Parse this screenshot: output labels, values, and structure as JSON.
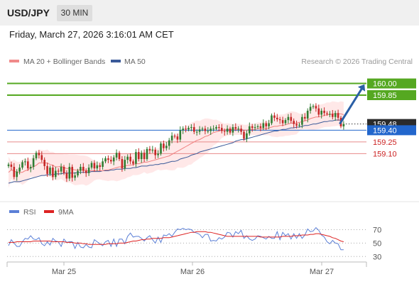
{
  "header": {
    "symbol": "USD/JPY",
    "timeframe": "30 MIN"
  },
  "timestamp": "Friday, March 27, 2026 3:16:01 AM CET",
  "watermark": "Research © 2026 Trading Central",
  "colors": {
    "resistance": "#55a821",
    "support_line": "#e88a8a",
    "support_label": "#cc2222",
    "current": "#2266cc",
    "arrow": "#2b5fa6",
    "band": "#ffd5d5",
    "ma20": "#f08080",
    "ma50": "#3a5a99",
    "rsi": "#5b7fd6",
    "rsi_ma": "#dd2222",
    "candle_up": "#2e7d32",
    "candle_down": "#c62828"
  },
  "chart_data": [
    {
      "type": "candlestick",
      "legend": [
        {
          "name": "MA 20 + Bollinger Bands",
          "color": "#f08a8a"
        },
        {
          "name": "MA 50",
          "color": "#3a5a99"
        }
      ],
      "legend_position": "top-left",
      "x_ticks": [
        "Mar 25",
        "Mar 26",
        "Mar 27"
      ],
      "ylim": [
        158.52,
        160.16
      ],
      "levels": {
        "resistance": [
          {
            "label": "160.00",
            "value": 160.0
          },
          {
            "label": "159.85",
            "value": 159.85
          }
        ],
        "support": [
          {
            "label": "159.25",
            "value": 159.25
          },
          {
            "label": "159.10",
            "value": 159.1
          }
        ],
        "pivot": {
          "label": "159.40",
          "value": 159.4
        },
        "last": {
          "label": "159.48",
          "value": 159.48
        }
      },
      "target": {
        "from": 159.49,
        "to": 160.0
      },
      "close": [
        158.96,
        158.93,
        158.8,
        158.87,
        158.92,
        158.99,
        159.0,
        158.91,
        158.93,
        159.04,
        159.11,
        159.08,
        159.02,
        158.94,
        158.84,
        158.92,
        158.8,
        158.88,
        158.87,
        158.93,
        158.85,
        158.78,
        158.93,
        158.79,
        158.82,
        158.88,
        158.93,
        158.88,
        158.85,
        158.92,
        158.98,
        158.91,
        158.95,
        158.93,
        159.0,
        159.04,
        159.02,
        159.0,
        159.05,
        159.11,
        159.03,
        158.91,
        159.02,
        159.06,
        159.0,
        158.97,
        159.12,
        159.03,
        159.11,
        159.03,
        159.16,
        159.14,
        159.15,
        159.08,
        159.1,
        159.23,
        159.17,
        159.2,
        159.27,
        159.33,
        159.32,
        159.28,
        159.4,
        159.42,
        159.41,
        159.43,
        159.44,
        159.38,
        159.38,
        159.41,
        159.42,
        159.39,
        159.39,
        159.42,
        159.42,
        159.44,
        159.43,
        159.39,
        159.38,
        159.42,
        159.37,
        159.44,
        159.42,
        159.42,
        159.38,
        159.29,
        159.36,
        159.45,
        159.43,
        159.44,
        159.45,
        159.43,
        159.49,
        159.45,
        159.49,
        159.59,
        159.56,
        159.54,
        159.53,
        159.49,
        159.53,
        159.57,
        159.52,
        159.48,
        159.46,
        159.47,
        159.57,
        159.55,
        159.65,
        159.7,
        159.71,
        159.68,
        159.6,
        159.65,
        159.62,
        159.61,
        159.61,
        159.57,
        159.62,
        159.56,
        159.45,
        159.48
      ],
      "ma20": [
        158.86,
        158.89,
        158.88,
        158.86,
        158.86,
        158.86,
        158.88,
        158.89,
        158.92,
        158.93,
        158.95,
        158.98,
        158.98,
        158.98,
        158.98,
        158.96,
        158.95,
        158.93,
        158.93,
        158.94,
        158.92,
        158.91,
        158.91,
        158.9,
        158.89,
        158.89,
        158.89,
        158.89,
        158.88,
        158.88,
        158.88,
        158.88,
        158.88,
        158.88,
        158.88,
        158.89,
        158.89,
        158.9,
        158.91,
        158.92,
        158.93,
        158.93,
        158.94,
        158.95,
        158.95,
        158.96,
        158.97,
        158.97,
        158.98,
        158.99,
        158.99,
        159.0,
        159.01,
        159.02,
        159.03,
        159.04,
        159.05,
        159.06,
        159.07,
        159.09,
        159.11,
        159.13,
        159.15,
        159.17,
        159.19,
        159.21,
        159.23,
        159.25,
        159.27,
        159.28,
        159.3,
        159.32,
        159.33,
        159.35,
        159.37,
        159.38,
        159.39,
        159.4,
        159.4,
        159.41,
        159.41,
        159.41,
        159.41,
        159.41,
        159.41,
        159.4,
        159.4,
        159.41,
        159.41,
        159.41,
        159.42,
        159.42,
        159.42,
        159.42,
        159.43,
        159.44,
        159.45,
        159.45,
        159.46,
        159.46,
        159.47,
        159.48,
        159.49,
        159.49,
        159.49,
        159.5,
        159.51,
        159.52,
        159.53,
        159.55,
        159.56,
        159.57,
        159.57,
        159.58,
        159.59,
        159.6,
        159.6,
        159.61,
        159.61,
        159.61,
        159.61,
        159.6
      ],
      "ma50": [
        158.72,
        158.73,
        158.74,
        158.74,
        158.74,
        158.75,
        158.76,
        158.77,
        158.78,
        158.79,
        158.8,
        158.81,
        158.82,
        158.82,
        158.83,
        158.83,
        158.83,
        158.84,
        158.84,
        158.84,
        158.85,
        158.85,
        158.85,
        158.85,
        158.85,
        158.86,
        158.86,
        158.86,
        158.86,
        158.86,
        158.87,
        158.87,
        158.87,
        158.87,
        158.88,
        158.88,
        158.88,
        158.89,
        158.89,
        158.9,
        158.9,
        158.9,
        158.91,
        158.91,
        158.91,
        158.92,
        158.92,
        158.93,
        158.94,
        158.94,
        158.94,
        158.95,
        158.95,
        158.96,
        158.96,
        158.97,
        158.97,
        158.98,
        158.99,
        159.0,
        159.0,
        159.01,
        159.03,
        159.04,
        159.05,
        159.06,
        159.08,
        159.09,
        159.1,
        159.12,
        159.13,
        159.14,
        159.15,
        159.16,
        159.17,
        159.18,
        159.19,
        159.2,
        159.21,
        159.22,
        159.23,
        159.24,
        159.26,
        159.27,
        159.28,
        159.28,
        159.29,
        159.3,
        159.31,
        159.32,
        159.33,
        159.34,
        159.35,
        159.36,
        159.37,
        159.38,
        159.39,
        159.39,
        159.4,
        159.41,
        159.41,
        159.42,
        159.43,
        159.43,
        159.44,
        159.44,
        159.45,
        159.46,
        159.46,
        159.47,
        159.48,
        159.48,
        159.49,
        159.5,
        159.51,
        159.51,
        159.52,
        159.52,
        159.53,
        159.53,
        159.53,
        159.53
      ]
    },
    {
      "type": "line",
      "legend": [
        {
          "name": "RSI",
          "color": "#5b7fd6"
        },
        {
          "name": "9MA",
          "color": "#dd2222"
        }
      ],
      "y_ticks": [
        70,
        50,
        30
      ],
      "ylim": [
        25,
        80
      ],
      "rsi": [
        46,
        55,
        50,
        45,
        45,
        52,
        57,
        56,
        61,
        56,
        55,
        58,
        49,
        46,
        52,
        47,
        57,
        53,
        52,
        45,
        56,
        51,
        52,
        52,
        42,
        51,
        44,
        43,
        48,
        44,
        43,
        55,
        52,
        49,
        46,
        52,
        54,
        45,
        56,
        45,
        56,
        56,
        49,
        60,
        65,
        59,
        60,
        60,
        57,
        53,
        58,
        61,
        55,
        50,
        59,
        51,
        62,
        61,
        64,
        60,
        66,
        71,
        70,
        72,
        70,
        71,
        70,
        66,
        65,
        63,
        58,
        63,
        63,
        53,
        54,
        53,
        58,
        56,
        59,
        66,
        65,
        59,
        67,
        64,
        69,
        57,
        61,
        56,
        54,
        56,
        61,
        60,
        58,
        56,
        60,
        57,
        57,
        67,
        55,
        66,
        61,
        64,
        56,
        64,
        57,
        64,
        57,
        62,
        71,
        67,
        68,
        73,
        69,
        62,
        59,
        52,
        49,
        54,
        50,
        49,
        40,
        40
      ],
      "rsi_ma": [
        51,
        51,
        51,
        52,
        52,
        52,
        52,
        52,
        52,
        53,
        53,
        53,
        53,
        53,
        53,
        53,
        52,
        52,
        52,
        52,
        52,
        51,
        51,
        51,
        50,
        50,
        50,
        49,
        49,
        48,
        48,
        48,
        48,
        48,
        48,
        48,
        49,
        49,
        49,
        49,
        50,
        50,
        50,
        51,
        52,
        53,
        53,
        54,
        55,
        55,
        56,
        56,
        57,
        57,
        57,
        57,
        58,
        58,
        58,
        59,
        60,
        61,
        62,
        63,
        64,
        65,
        66,
        66,
        67,
        67,
        67,
        67,
        66,
        66,
        65,
        64,
        63,
        62,
        61,
        60,
        60,
        60,
        60,
        60,
        60,
        60,
        60,
        60,
        60,
        60,
        60,
        59,
        59,
        59,
        59,
        59,
        59,
        59,
        59,
        60,
        60,
        60,
        60,
        61,
        61,
        61,
        62,
        62,
        62,
        63,
        63,
        64,
        64,
        63,
        62,
        61,
        60,
        58,
        57,
        55,
        53,
        52
      ]
    }
  ]
}
